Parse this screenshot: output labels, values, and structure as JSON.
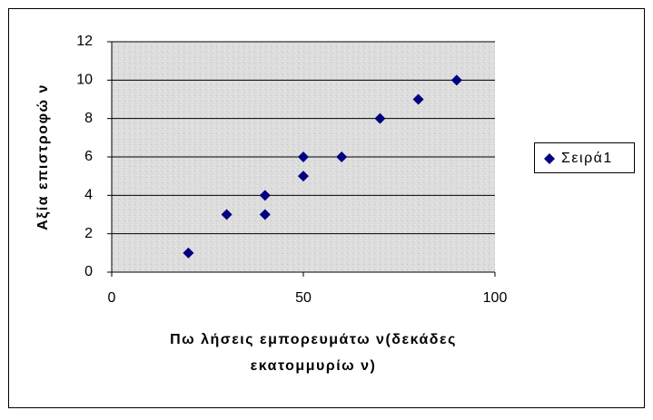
{
  "chart_data": {
    "type": "scatter",
    "xlabel": [
      "Πω λήσεις εμπορευμάτω ν(δεκάδες",
      "εκατομμυρίω ν)"
    ],
    "ylabel": "Αξία επιστροφώ ν",
    "series": [
      {
        "name": "Σειρά1",
        "color": "#000080",
        "x": [
          20,
          30,
          40,
          40,
          50,
          50,
          60,
          70,
          80,
          90
        ],
        "values": [
          1,
          3,
          3,
          4,
          5,
          6,
          6,
          8,
          9,
          10
        ]
      }
    ],
    "xlim": [
      0,
      100
    ],
    "xticks": [
      0,
      50,
      100
    ],
    "ylim": [
      0,
      12
    ],
    "yticks": [
      0,
      2,
      4,
      6,
      8,
      10,
      12
    ],
    "grid": true,
    "legend": "right"
  }
}
